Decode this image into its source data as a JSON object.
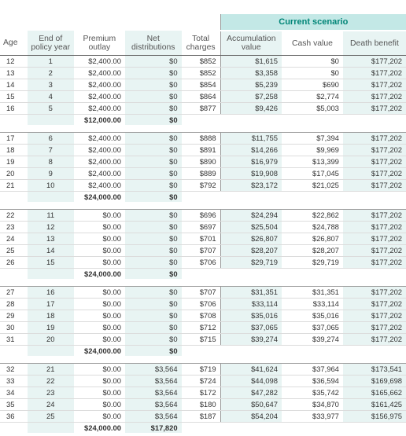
{
  "scenario_label": "Current scenario",
  "columns": {
    "age": "Age",
    "policy_year": [
      "End of",
      "policy year"
    ],
    "premium_outlay": [
      "Premium",
      "outlay"
    ],
    "net_distributions": [
      "Net",
      "distributions"
    ],
    "total_charges": [
      "Total",
      "charges"
    ],
    "accumulation_value": [
      "Accumulation",
      "value"
    ],
    "cash_value": "Cash value",
    "death_benefit": "Death benefit"
  },
  "groups": [
    {
      "rows": [
        [
          "12",
          "1",
          "$2,400.00",
          "$0",
          "$852",
          "$1,615",
          "$0",
          "$177,202"
        ],
        [
          "13",
          "2",
          "$2,400.00",
          "$0",
          "$852",
          "$3,358",
          "$0",
          "$177,202"
        ],
        [
          "14",
          "3",
          "$2,400.00",
          "$0",
          "$854",
          "$5,239",
          "$690",
          "$177,202"
        ],
        [
          "15",
          "4",
          "$2,400.00",
          "$0",
          "$864",
          "$7,258",
          "$2,774",
          "$177,202"
        ],
        [
          "16",
          "5",
          "$2,400.00",
          "$0",
          "$877",
          "$9,426",
          "$5,003",
          "$177,202"
        ]
      ],
      "total_premium": "$12,000.00",
      "total_distributions": "$0"
    },
    {
      "rows": [
        [
          "17",
          "6",
          "$2,400.00",
          "$0",
          "$888",
          "$11,755",
          "$7,394",
          "$177,202"
        ],
        [
          "18",
          "7",
          "$2,400.00",
          "$0",
          "$891",
          "$14,266",
          "$9,969",
          "$177,202"
        ],
        [
          "19",
          "8",
          "$2,400.00",
          "$0",
          "$890",
          "$16,979",
          "$13,399",
          "$177,202"
        ],
        [
          "20",
          "9",
          "$2,400.00",
          "$0",
          "$889",
          "$19,908",
          "$17,045",
          "$177,202"
        ],
        [
          "21",
          "10",
          "$2,400.00",
          "$0",
          "$792",
          "$23,172",
          "$21,025",
          "$177,202"
        ]
      ],
      "total_premium": "$24,000.00",
      "total_distributions": "$0"
    },
    {
      "rows": [
        [
          "22",
          "11",
          "$0.00",
          "$0",
          "$696",
          "$24,294",
          "$22,862",
          "$177,202"
        ],
        [
          "23",
          "12",
          "$0.00",
          "$0",
          "$697",
          "$25,504",
          "$24,788",
          "$177,202"
        ],
        [
          "24",
          "13",
          "$0.00",
          "$0",
          "$701",
          "$26,807",
          "$26,807",
          "$177,202"
        ],
        [
          "25",
          "14",
          "$0.00",
          "$0",
          "$707",
          "$28,207",
          "$28,207",
          "$177,202"
        ],
        [
          "26",
          "15",
          "$0.00",
          "$0",
          "$706",
          "$29,719",
          "$29,719",
          "$177,202"
        ]
      ],
      "total_premium": "$24,000.00",
      "total_distributions": "$0"
    },
    {
      "rows": [
        [
          "27",
          "16",
          "$0.00",
          "$0",
          "$707",
          "$31,351",
          "$31,351",
          "$177,202"
        ],
        [
          "28",
          "17",
          "$0.00",
          "$0",
          "$706",
          "$33,114",
          "$33,114",
          "$177,202"
        ],
        [
          "29",
          "18",
          "$0.00",
          "$0",
          "$708",
          "$35,016",
          "$35,016",
          "$177,202"
        ],
        [
          "30",
          "19",
          "$0.00",
          "$0",
          "$712",
          "$37,065",
          "$37,065",
          "$177,202"
        ],
        [
          "31",
          "20",
          "$0.00",
          "$0",
          "$715",
          "$39,274",
          "$39,274",
          "$177,202"
        ]
      ],
      "total_premium": "$24,000.00",
      "total_distributions": "$0"
    },
    {
      "rows": [
        [
          "32",
          "21",
          "$0.00",
          "$3,564",
          "$719",
          "$41,624",
          "$37,964",
          "$173,541"
        ],
        [
          "33",
          "22",
          "$0.00",
          "$3,564",
          "$724",
          "$44,098",
          "$36,594",
          "$169,698"
        ],
        [
          "34",
          "23",
          "$0.00",
          "$3,564",
          "$172",
          "$47,282",
          "$35,742",
          "$165,662"
        ],
        [
          "35",
          "24",
          "$0.00",
          "$3,564",
          "$180",
          "$50,647",
          "$34,870",
          "$161,425"
        ],
        [
          "36",
          "25",
          "$0.00",
          "$3,564",
          "$187",
          "$54,204",
          "$33,977",
          "$156,975"
        ]
      ],
      "total_premium": "$24,000.00",
      "total_distributions": "$17,820"
    }
  ]
}
